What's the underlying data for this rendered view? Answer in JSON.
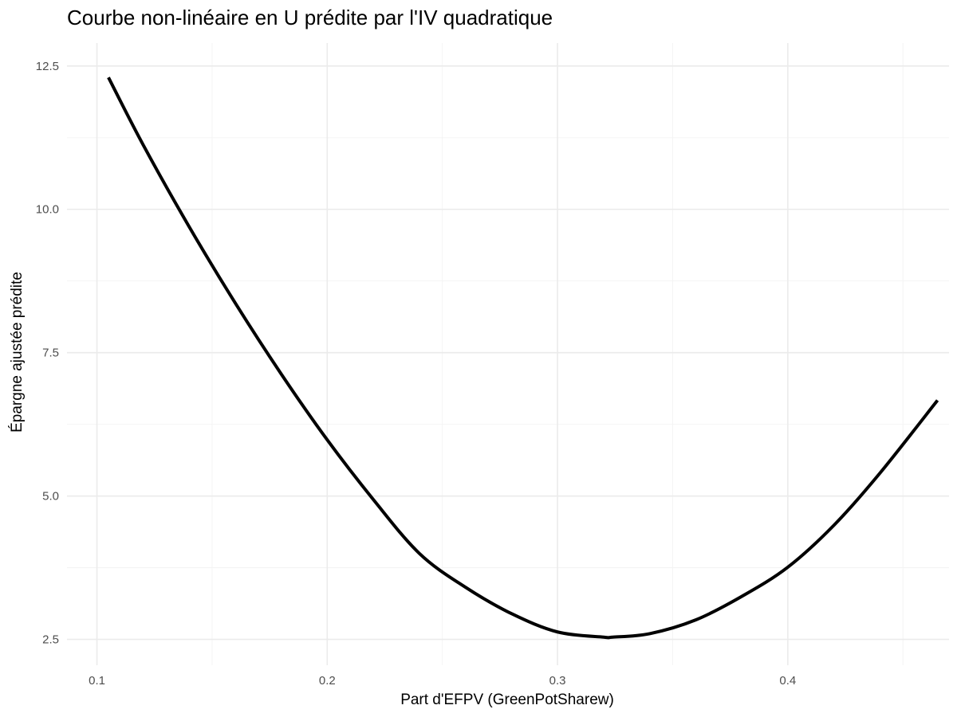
{
  "chart_data": {
    "type": "line",
    "title": "Courbe non-linéaire en U prédite par l'IV quadratique",
    "xlabel": "Part d'EFPV (GreenPotSharew)",
    "ylabel": "Épargne ajustée prédite",
    "xlim": [
      0.087,
      0.47
    ],
    "ylim": [
      2.05,
      12.9
    ],
    "x_ticks": [
      0.1,
      0.2,
      0.3,
      0.4
    ],
    "x_tick_labels": [
      "0.1",
      "0.2",
      "0.3",
      "0.4"
    ],
    "y_ticks": [
      2.5,
      5.0,
      7.5,
      10.0,
      12.5
    ],
    "y_tick_labels": [
      "2.5",
      "5.0",
      "7.5",
      "10.0",
      "12.5"
    ],
    "x_minor": [
      0.15,
      0.25,
      0.35,
      0.45
    ],
    "y_minor": [
      3.75,
      6.25,
      8.75,
      11.25
    ],
    "grid": true,
    "series": [
      {
        "color": "#000000",
        "x": [
          0.105,
          0.12,
          0.14,
          0.16,
          0.18,
          0.2,
          0.22,
          0.24,
          0.26,
          0.28,
          0.3,
          0.32,
          0.324,
          0.34,
          0.36,
          0.38,
          0.4,
          0.42,
          0.44,
          0.465
        ],
        "y": [
          12.3,
          11.13,
          9.7,
          8.37,
          7.13,
          5.98,
          4.94,
          4.0,
          3.41,
          2.95,
          2.63,
          2.54,
          2.54,
          2.6,
          2.84,
          3.25,
          3.76,
          4.49,
          5.4,
          6.67
        ]
      }
    ]
  }
}
